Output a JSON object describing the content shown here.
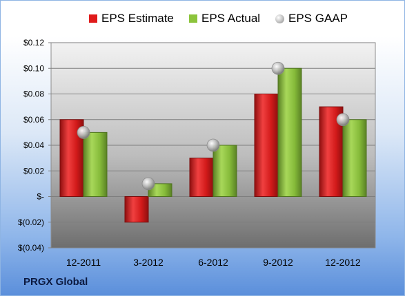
{
  "chart_data": {
    "type": "bar",
    "categories": [
      "12-2011",
      "3-2012",
      "6-2012",
      "9-2012",
      "12-2012"
    ],
    "series": [
      {
        "name": "EPS Estimate",
        "values": [
          0.06,
          -0.02,
          0.03,
          0.08,
          0.07
        ],
        "color": "#d92020",
        "kind": "bar"
      },
      {
        "name": "EPS Actual",
        "values": [
          0.05,
          0.01,
          0.04,
          0.1,
          0.06
        ],
        "color": "#8cc43c",
        "kind": "bar"
      },
      {
        "name": "EPS GAAP",
        "values": [
          0.05,
          0.01,
          0.04,
          0.1,
          0.06
        ],
        "color": "#b0b0b0",
        "kind": "marker"
      }
    ],
    "yticks": [
      {
        "value": 0.12,
        "label": "$0.12"
      },
      {
        "value": 0.1,
        "label": "$0.10"
      },
      {
        "value": 0.08,
        "label": "$0.08"
      },
      {
        "value": 0.06,
        "label": "$0.06"
      },
      {
        "value": 0.04,
        "label": "$0.04"
      },
      {
        "value": 0.02,
        "label": "$0.02"
      },
      {
        "value": 0,
        "label": "$-"
      },
      {
        "value": -0.02,
        "label": "$(0.02)"
      },
      {
        "value": -0.04,
        "label": "$(0.04)"
      }
    ],
    "ylim": [
      -0.04,
      0.12
    ],
    "grid": true,
    "legend_position": "top"
  },
  "legend": {
    "estimate": "EPS Estimate",
    "actual": "EPS Actual",
    "gaap": "EPS GAAP"
  },
  "footer": {
    "company": "PRGX Global"
  }
}
